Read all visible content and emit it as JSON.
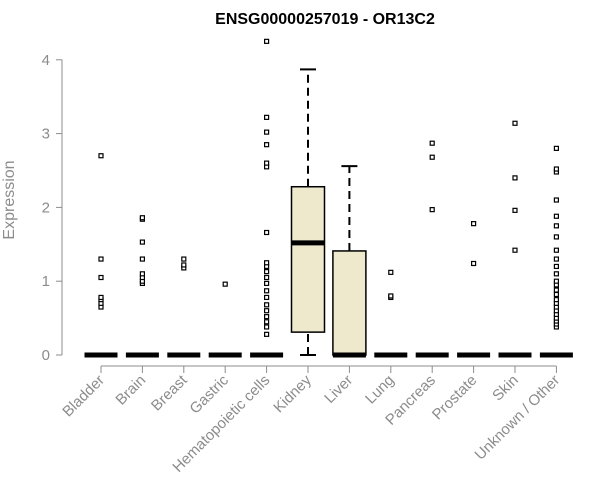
{
  "chart_data": {
    "type": "box",
    "title": "ENSG00000257019 - OR13C2",
    "ylabel": "Expression",
    "xlabel": "",
    "ylim": [
      0,
      4.3
    ],
    "yticks": [
      0,
      1,
      2,
      3,
      4
    ],
    "grid": false,
    "box_fill": "#EEE8CD",
    "categories": [
      "Bladder",
      "Brain",
      "Breast",
      "Gastric",
      "Hematopoietic cells",
      "Kidney",
      "Liver",
      "Lung",
      "Pancreas",
      "Prostate",
      "Skin",
      "Unknown / Other"
    ],
    "boxes": [
      {
        "min": 0,
        "q1": 0,
        "median": 0,
        "q3": 0,
        "max": 0,
        "outliers": [
          0.65,
          0.7,
          0.75,
          0.78,
          1.05,
          1.3,
          2.7
        ]
      },
      {
        "min": 0,
        "q1": 0,
        "median": 0,
        "q3": 0,
        "max": 0,
        "outliers": [
          0.97,
          1.0,
          1.05,
          1.1,
          1.3,
          1.53,
          1.84,
          1.86
        ]
      },
      {
        "min": 0,
        "q1": 0,
        "median": 0,
        "q3": 0,
        "max": 0,
        "outliers": [
          1.18,
          1.22,
          1.3
        ]
      },
      {
        "min": 0,
        "q1": 0,
        "median": 0,
        "q3": 0,
        "max": 0,
        "outliers": [
          0.96
        ]
      },
      {
        "min": 0,
        "q1": 0,
        "median": 0,
        "q3": 0,
        "max": 0,
        "outliers": [
          0.28,
          0.38,
          0.45,
          0.52,
          0.6,
          0.68,
          0.78,
          0.87,
          0.97,
          1.05,
          1.13,
          1.2,
          1.25,
          1.66,
          2.55,
          2.6,
          2.85,
          3.02,
          3.22,
          4.25
        ]
      },
      {
        "min": 0,
        "q1": 0.31,
        "median": 1.52,
        "q3": 2.28,
        "max": 3.87,
        "outliers": []
      },
      {
        "min": 0,
        "q1": 0,
        "median": 0,
        "q3": 1.41,
        "max": 2.56,
        "outliers": []
      },
      {
        "min": 0,
        "q1": 0,
        "median": 0,
        "q3": 0,
        "max": 0,
        "outliers": [
          0.78,
          0.8,
          1.12
        ]
      },
      {
        "min": 0,
        "q1": 0,
        "median": 0,
        "q3": 0,
        "max": 0,
        "outliers": [
          1.97,
          2.68,
          2.87
        ]
      },
      {
        "min": 0,
        "q1": 0,
        "median": 0,
        "q3": 0,
        "max": 0,
        "outliers": [
          1.24,
          1.78
        ]
      },
      {
        "min": 0,
        "q1": 0,
        "median": 0,
        "q3": 0,
        "max": 0,
        "outliers": [
          1.42,
          1.96,
          2.4,
          3.14
        ]
      },
      {
        "min": 0,
        "q1": 0,
        "median": 0,
        "q3": 0,
        "max": 0,
        "outliers": [
          0.38,
          0.42,
          0.46,
          0.5,
          0.55,
          0.6,
          0.65,
          0.7,
          0.75,
          0.82,
          0.88,
          0.95,
          1.0,
          1.1,
          1.2,
          1.3,
          1.42,
          1.6,
          1.75,
          1.88,
          2.1,
          2.48,
          2.52,
          2.8
        ]
      }
    ]
  }
}
